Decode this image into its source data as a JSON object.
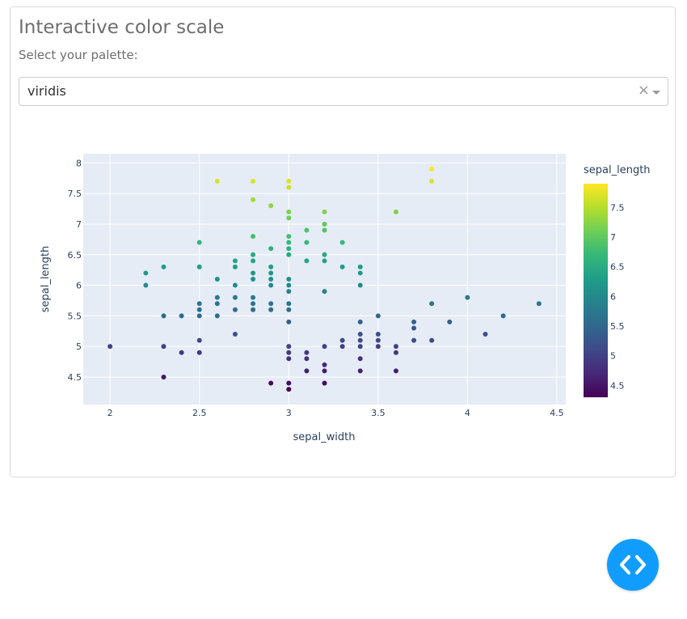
{
  "header": {
    "title": "Interactive color scale",
    "palette_label": "Select your palette:"
  },
  "dropdown": {
    "value": "viridis",
    "clear_symbol": "×"
  },
  "colors": {
    "plot_background": "#e5ecf6",
    "accent_button": "#119dff",
    "viridis": [
      "#440154",
      "#482878",
      "#3e4989",
      "#31688e",
      "#26828e",
      "#1f9e89",
      "#35b779",
      "#6ece58",
      "#b5de2b",
      "#fde725"
    ]
  },
  "chart_data": {
    "type": "scatter",
    "xlabel": "sepal_width",
    "ylabel": "sepal_length",
    "colorbar_title": "sepal_length",
    "xlim": [
      1.85,
      4.55
    ],
    "ylim": [
      4.05,
      8.15
    ],
    "x_ticks": [
      "2",
      "2.5",
      "3",
      "3.5",
      "4",
      "4.5"
    ],
    "y_ticks": [
      "4.5",
      "5",
      "5.5",
      "6",
      "6.5",
      "7",
      "7.5",
      "8"
    ],
    "colorbar_ticks": [
      "4.5",
      "5",
      "5.5",
      "6",
      "6.5",
      "7",
      "7.5"
    ],
    "color_range": [
      4.3,
      7.9
    ],
    "grid": true,
    "points": [
      [
        3.8,
        7.9
      ],
      [
        2.6,
        7.7
      ],
      [
        2.8,
        7.7
      ],
      [
        3.0,
        7.7
      ],
      [
        3.8,
        7.7
      ],
      [
        3.0,
        7.6
      ],
      [
        2.8,
        7.4
      ],
      [
        2.9,
        7.3
      ],
      [
        3.6,
        7.2
      ],
      [
        3.0,
        7.2
      ],
      [
        3.2,
        7.2
      ],
      [
        3.0,
        7.1
      ],
      [
        3.2,
        7.0
      ],
      [
        2.8,
        6.8
      ],
      [
        3.0,
        6.8
      ],
      [
        3.2,
        6.9
      ],
      [
        3.1,
        6.9
      ],
      [
        2.5,
        6.7
      ],
      [
        3.0,
        6.7
      ],
      [
        3.1,
        6.7
      ],
      [
        3.3,
        6.7
      ],
      [
        2.9,
        6.6
      ],
      [
        3.0,
        6.6
      ],
      [
        2.8,
        6.5
      ],
      [
        3.0,
        6.5
      ],
      [
        3.2,
        6.5
      ],
      [
        2.3,
        6.3
      ],
      [
        2.5,
        6.3
      ],
      [
        2.7,
        6.3
      ],
      [
        2.9,
        6.3
      ],
      [
        3.3,
        6.3
      ],
      [
        3.4,
        6.3
      ],
      [
        3.1,
        6.4
      ],
      [
        2.7,
        6.4
      ],
      [
        2.8,
        6.4
      ],
      [
        3.2,
        6.4
      ],
      [
        2.2,
        6.2
      ],
      [
        2.8,
        6.2
      ],
      [
        2.9,
        6.2
      ],
      [
        3.4,
        6.2
      ],
      [
        2.6,
        6.1
      ],
      [
        2.8,
        6.1
      ],
      [
        2.9,
        6.1
      ],
      [
        3.0,
        6.1
      ],
      [
        2.2,
        6.0
      ],
      [
        2.7,
        6.0
      ],
      [
        2.9,
        6.0
      ],
      [
        3.0,
        6.0
      ],
      [
        3.4,
        6.0
      ],
      [
        3.0,
        5.9
      ],
      [
        3.2,
        5.9
      ],
      [
        2.7,
        5.8
      ],
      [
        2.6,
        5.8
      ],
      [
        2.8,
        5.8
      ],
      [
        4.0,
        5.8
      ],
      [
        2.5,
        5.7
      ],
      [
        2.6,
        5.7
      ],
      [
        2.8,
        5.7
      ],
      [
        2.9,
        5.7
      ],
      [
        3.0,
        5.7
      ],
      [
        3.8,
        5.7
      ],
      [
        4.4,
        5.7
      ],
      [
        2.5,
        5.6
      ],
      [
        2.7,
        5.6
      ],
      [
        2.8,
        5.6
      ],
      [
        2.9,
        5.6
      ],
      [
        3.0,
        5.6
      ],
      [
        2.3,
        5.5
      ],
      [
        2.4,
        5.5
      ],
      [
        2.5,
        5.5
      ],
      [
        2.6,
        5.5
      ],
      [
        3.5,
        5.5
      ],
      [
        4.2,
        5.5
      ],
      [
        3.0,
        5.4
      ],
      [
        3.4,
        5.4
      ],
      [
        3.7,
        5.4
      ],
      [
        3.9,
        5.4
      ],
      [
        3.7,
        5.3
      ],
      [
        2.7,
        5.2
      ],
      [
        3.4,
        5.2
      ],
      [
        3.5,
        5.2
      ],
      [
        4.1,
        5.2
      ],
      [
        2.5,
        5.1
      ],
      [
        3.3,
        5.1
      ],
      [
        3.4,
        5.1
      ],
      [
        3.5,
        5.1
      ],
      [
        3.7,
        5.1
      ],
      [
        3.8,
        5.1
      ],
      [
        2.0,
        5.0
      ],
      [
        2.3,
        5.0
      ],
      [
        3.0,
        5.0
      ],
      [
        3.2,
        5.0
      ],
      [
        3.3,
        5.0
      ],
      [
        3.4,
        5.0
      ],
      [
        3.5,
        5.0
      ],
      [
        3.6,
        5.0
      ],
      [
        2.4,
        4.9
      ],
      [
        2.5,
        4.9
      ],
      [
        3.0,
        4.9
      ],
      [
        3.1,
        4.9
      ],
      [
        3.6,
        4.9
      ],
      [
        3.0,
        4.8
      ],
      [
        3.1,
        4.8
      ],
      [
        3.4,
        4.8
      ],
      [
        3.2,
        4.7
      ],
      [
        3.1,
        4.6
      ],
      [
        3.2,
        4.6
      ],
      [
        3.4,
        4.6
      ],
      [
        3.6,
        4.6
      ],
      [
        2.3,
        4.5
      ],
      [
        2.9,
        4.4
      ],
      [
        3.0,
        4.4
      ],
      [
        3.2,
        4.4
      ],
      [
        3.0,
        4.3
      ]
    ]
  }
}
